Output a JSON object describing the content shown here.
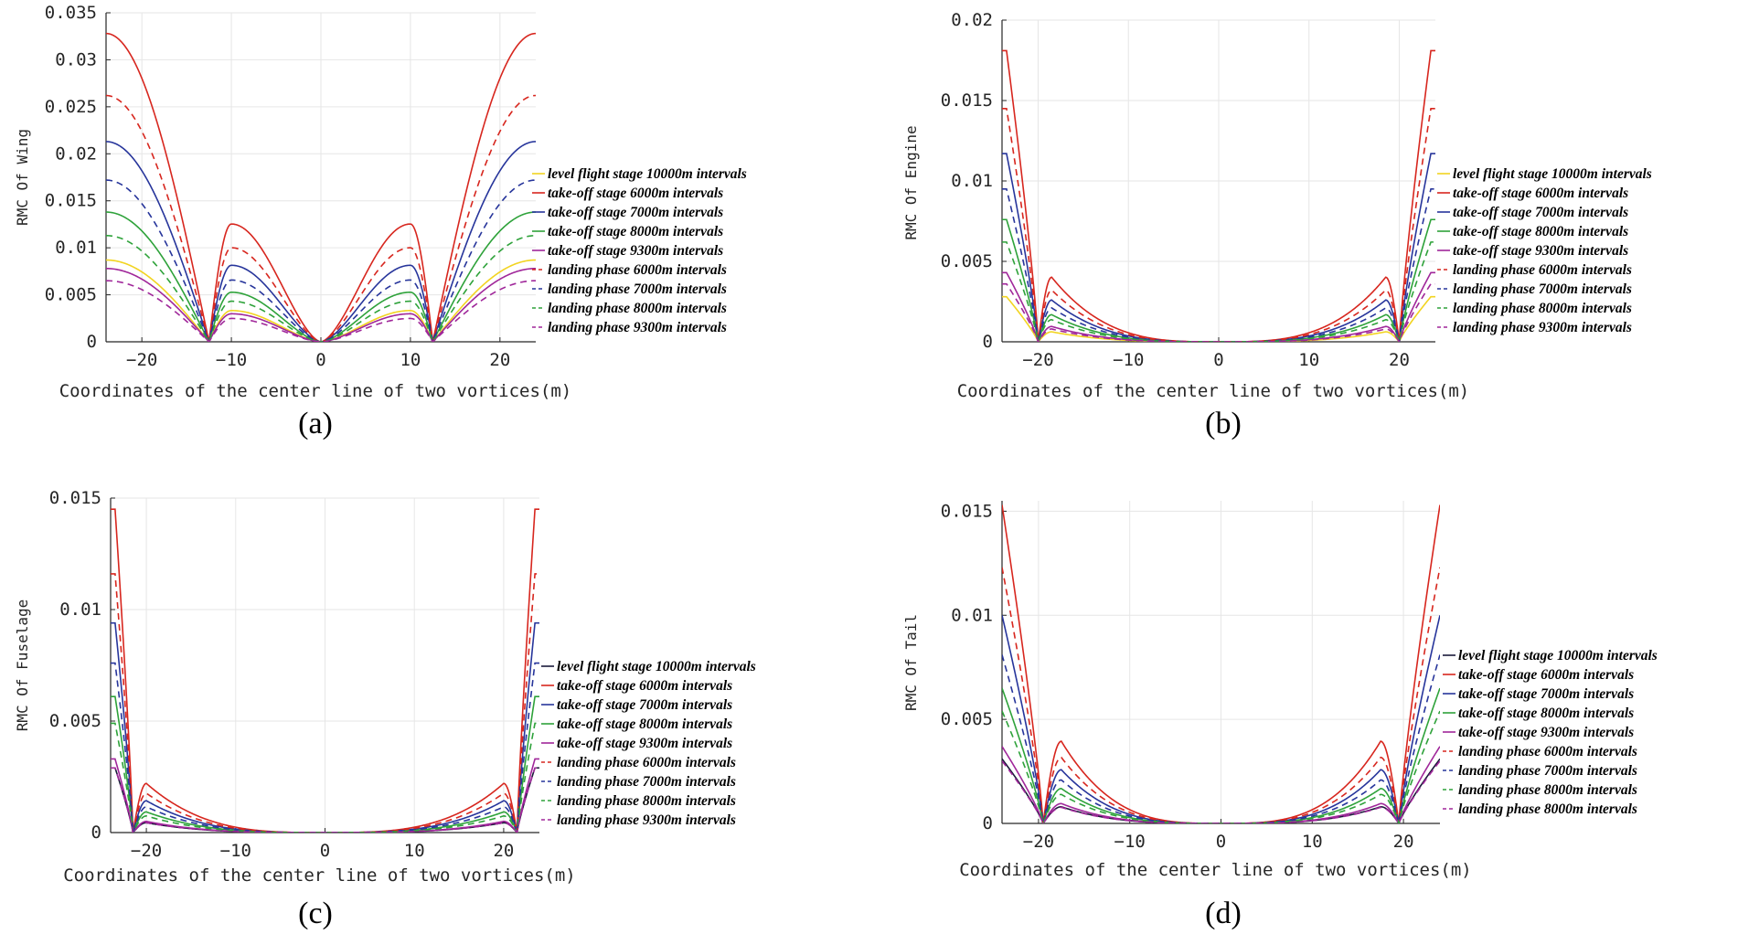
{
  "figure": {
    "colors": {
      "yellow": "#f2d421",
      "red": "#d7261e",
      "blue": "#27359b",
      "green": "#2ea23a",
      "purple": "#a0279a",
      "black": "#1a1a3a"
    }
  },
  "chart_data": [
    {
      "type": "line",
      "panel_label": "(a)",
      "xlabel": "Coordinates of the center line of two vortices(m)",
      "ylabel": "RMC Of Wing",
      "xlim": [
        -24,
        24
      ],
      "ylim": [
        0,
        0.035
      ],
      "xticks": [
        -20,
        -10,
        0,
        10,
        20
      ],
      "xtick_labels": [
        "−20",
        "−10",
        "0",
        "10",
        "20"
      ],
      "yticks": [
        0,
        0.005,
        0.01,
        0.015,
        0.02,
        0.025,
        0.03,
        0.035
      ],
      "ytick_labels": [
        "0",
        "0.005",
        "0.01",
        "0.015",
        "0.02",
        "0.025",
        "0.03",
        "0.035"
      ],
      "grid": true,
      "legend_position": "right",
      "profile": {
        "kind": "wing",
        "zero_at": 12.5,
        "inner_peak_at": 10,
        "inner_peak_ratio": 0.382
      },
      "series": [
        {
          "name": "level flight stage 10000m intervals",
          "color_key": "yellow",
          "dashed": false,
          "peak": 0.0087
        },
        {
          "name": "take-off stage 6000m intervals",
          "color_key": "red",
          "dashed": false,
          "peak": 0.0328
        },
        {
          "name": "take-off stage 7000m intervals",
          "color_key": "blue",
          "dashed": false,
          "peak": 0.0213
        },
        {
          "name": "take-off stage 8000m intervals",
          "color_key": "green",
          "dashed": false,
          "peak": 0.0138
        },
        {
          "name": "take-off stage 9300m intervals",
          "color_key": "purple",
          "dashed": false,
          "peak": 0.0078
        },
        {
          "name": "landing phase 6000m intervals",
          "color_key": "red",
          "dashed": true,
          "peak": 0.0262
        },
        {
          "name": "landing phase 7000m intervals",
          "color_key": "blue",
          "dashed": true,
          "peak": 0.0172
        },
        {
          "name": "landing phase 8000m intervals",
          "color_key": "green",
          "dashed": true,
          "peak": 0.0113
        },
        {
          "name": "landing phase 9300m intervals",
          "color_key": "purple",
          "dashed": true,
          "peak": 0.0065
        }
      ]
    },
    {
      "type": "line",
      "panel_label": "(b)",
      "xlabel": "Coordinates of the center line of two vortices(m)",
      "ylabel": "RMC Of Engine",
      "xlim": [
        -24,
        24
      ],
      "ylim": [
        0,
        0.02
      ],
      "xticks": [
        -20,
        -10,
        0,
        10,
        20
      ],
      "xtick_labels": [
        "−20",
        "−10",
        "0",
        "10",
        "20"
      ],
      "yticks": [
        0,
        0.005,
        0.01,
        0.015,
        0.02
      ],
      "ytick_labels": [
        "0",
        "0.005",
        "0.01",
        "0.015",
        "0.02"
      ],
      "grid": true,
      "legend_position": "right",
      "profile": {
        "kind": "edge",
        "zero_at": 20,
        "inner_peak_at": 18.5,
        "inner_peak_ratio": 0.222,
        "edge_x": 23.5
      },
      "series": [
        {
          "name": "level flight stage 10000m intervals",
          "color_key": "yellow",
          "dashed": false,
          "peak": 0.0028
        },
        {
          "name": "take-off stage 6000m intervals",
          "color_key": "red",
          "dashed": false,
          "peak": 0.0181
        },
        {
          "name": "take-off stage 7000m intervals",
          "color_key": "blue",
          "dashed": false,
          "peak": 0.0117
        },
        {
          "name": "take-off stage 8000m intervals",
          "color_key": "green",
          "dashed": false,
          "peak": 0.0076
        },
        {
          "name": "take-off stage 9300m intervals",
          "color_key": "purple",
          "dashed": false,
          "peak": 0.0043
        },
        {
          "name": "landing phase 6000m intervals",
          "color_key": "red",
          "dashed": true,
          "peak": 0.0145
        },
        {
          "name": "landing phase 7000m intervals",
          "color_key": "blue",
          "dashed": true,
          "peak": 0.0095
        },
        {
          "name": "landing phase 8000m intervals",
          "color_key": "green",
          "dashed": true,
          "peak": 0.0062
        },
        {
          "name": "landing phase 9300m intervals",
          "color_key": "purple",
          "dashed": true,
          "peak": 0.0036
        }
      ]
    },
    {
      "type": "line",
      "panel_label": "(c)",
      "xlabel": "Coordinates of the center line of two vortices(m)",
      "ylabel": "RMC Of Fuselage",
      "xlim": [
        -24,
        24
      ],
      "ylim": [
        0,
        0.015
      ],
      "xticks": [
        -20,
        -10,
        0,
        10,
        20
      ],
      "xtick_labels": [
        "−20",
        "−10",
        "0",
        "10",
        "20"
      ],
      "yticks": [
        0,
        0.005,
        0.01,
        0.015
      ],
      "ytick_labels": [
        "0",
        "0.005",
        "0.01",
        "0.015"
      ],
      "grid": true,
      "legend_position": "right",
      "profile": {
        "kind": "edge",
        "zero_at": 21.5,
        "inner_peak_at": 20,
        "inner_peak_ratio": 0.152,
        "edge_x": 23.5
      },
      "series": [
        {
          "name": "level flight stage 10000m intervals",
          "color_key": "black",
          "dashed": false,
          "peak": 0.0029
        },
        {
          "name": "take-off stage 6000m intervals",
          "color_key": "red",
          "dashed": false,
          "peak": 0.0145
        },
        {
          "name": "take-off stage 7000m intervals",
          "color_key": "blue",
          "dashed": false,
          "peak": 0.0094
        },
        {
          "name": "take-off stage 8000m intervals",
          "color_key": "green",
          "dashed": false,
          "peak": 0.0061
        },
        {
          "name": "take-off stage 9300m intervals",
          "color_key": "purple",
          "dashed": false,
          "peak": 0.0033
        },
        {
          "name": "landing phase 6000m intervals",
          "color_key": "red",
          "dashed": true,
          "peak": 0.0116
        },
        {
          "name": "landing phase 7000m intervals",
          "color_key": "blue",
          "dashed": true,
          "peak": 0.0076
        },
        {
          "name": "landing phase 8000m intervals",
          "color_key": "green",
          "dashed": true,
          "peak": 0.0049
        },
        {
          "name": "landing phase 9300m intervals",
          "color_key": "purple",
          "dashed": true,
          "peak": 0.0029
        }
      ]
    },
    {
      "type": "line",
      "panel_label": "(d)",
      "xlabel": "Coordinates of the center line of two vortices(m)",
      "ylabel": "RMC Of Tail",
      "xlim": [
        -24,
        24
      ],
      "ylim": [
        0,
        0.0155
      ],
      "xticks": [
        -20,
        -10,
        0,
        10,
        20
      ],
      "xtick_labels": [
        "−20",
        "−10",
        "0",
        "10",
        "20"
      ],
      "yticks": [
        0,
        0.005,
        0.01,
        0.015
      ],
      "ytick_labels": [
        "0",
        "0.005",
        "0.01",
        "0.015"
      ],
      "grid": true,
      "legend_position": "right",
      "profile": {
        "kind": "edge",
        "zero_at": 19.5,
        "inner_peak_at": 17.5,
        "inner_peak_ratio": 0.258,
        "edge_x": 24
      },
      "series": [
        {
          "name": "level flight stage 10000m intervals",
          "color_key": "black",
          "dashed": false,
          "peak": 0.0031
        },
        {
          "name": "take-off stage 6000m intervals",
          "color_key": "red",
          "dashed": false,
          "peak": 0.0153
        },
        {
          "name": "take-off stage 7000m intervals",
          "color_key": "blue",
          "dashed": false,
          "peak": 0.01
        },
        {
          "name": "take-off stage 8000m intervals",
          "color_key": "green",
          "dashed": false,
          "peak": 0.0065
        },
        {
          "name": "take-off stage 9300m intervals",
          "color_key": "purple",
          "dashed": false,
          "peak": 0.0037
        },
        {
          "name": "landing phase 6000m intervals",
          "color_key": "red",
          "dashed": true,
          "peak": 0.0123
        },
        {
          "name": "landing phase 7000m intervals",
          "color_key": "blue",
          "dashed": true,
          "peak": 0.0081
        },
        {
          "name": "landing phase 8000m intervals",
          "color_key": "green",
          "dashed": true,
          "peak": 0.0054
        },
        {
          "name": "landing phase 8000m intervals",
          "color_key": "purple",
          "dashed": true,
          "peak": 0.003
        }
      ]
    }
  ]
}
